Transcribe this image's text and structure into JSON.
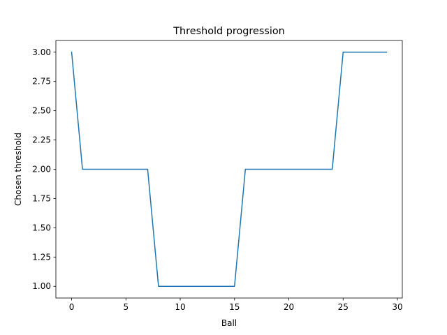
{
  "chart_data": {
    "type": "line",
    "title": "Threshold progression",
    "xlabel": "Ball",
    "ylabel": "Chosen threshold",
    "xlim": [
      -1.45,
      30.45
    ],
    "ylim": [
      0.9,
      3.1
    ],
    "x_ticks": [
      0,
      5,
      10,
      15,
      20,
      25,
      30
    ],
    "x_tick_labels": [
      "0",
      "5",
      "10",
      "15",
      "20",
      "25",
      "30"
    ],
    "y_ticks": [
      1.0,
      1.25,
      1.5,
      1.75,
      2.0,
      2.25,
      2.5,
      2.75,
      3.0
    ],
    "y_tick_labels": [
      "1.00",
      "1.25",
      "1.50",
      "1.75",
      "2.00",
      "2.25",
      "2.50",
      "2.75",
      "3.00"
    ],
    "grid": false,
    "legend": "none",
    "series": [
      {
        "color": "#1f77b4",
        "x": [
          0,
          1,
          2,
          3,
          4,
          5,
          6,
          7,
          8,
          9,
          10,
          11,
          12,
          13,
          14,
          15,
          16,
          17,
          18,
          19,
          20,
          21,
          22,
          23,
          24,
          25,
          26,
          27,
          28,
          29
        ],
        "y": [
          3,
          2,
          2,
          2,
          2,
          2,
          2,
          2,
          1,
          1,
          1,
          1,
          1,
          1,
          1,
          1,
          2,
          2,
          2,
          2,
          2,
          2,
          2,
          2,
          2,
          3,
          3,
          3,
          3,
          3
        ]
      }
    ]
  }
}
